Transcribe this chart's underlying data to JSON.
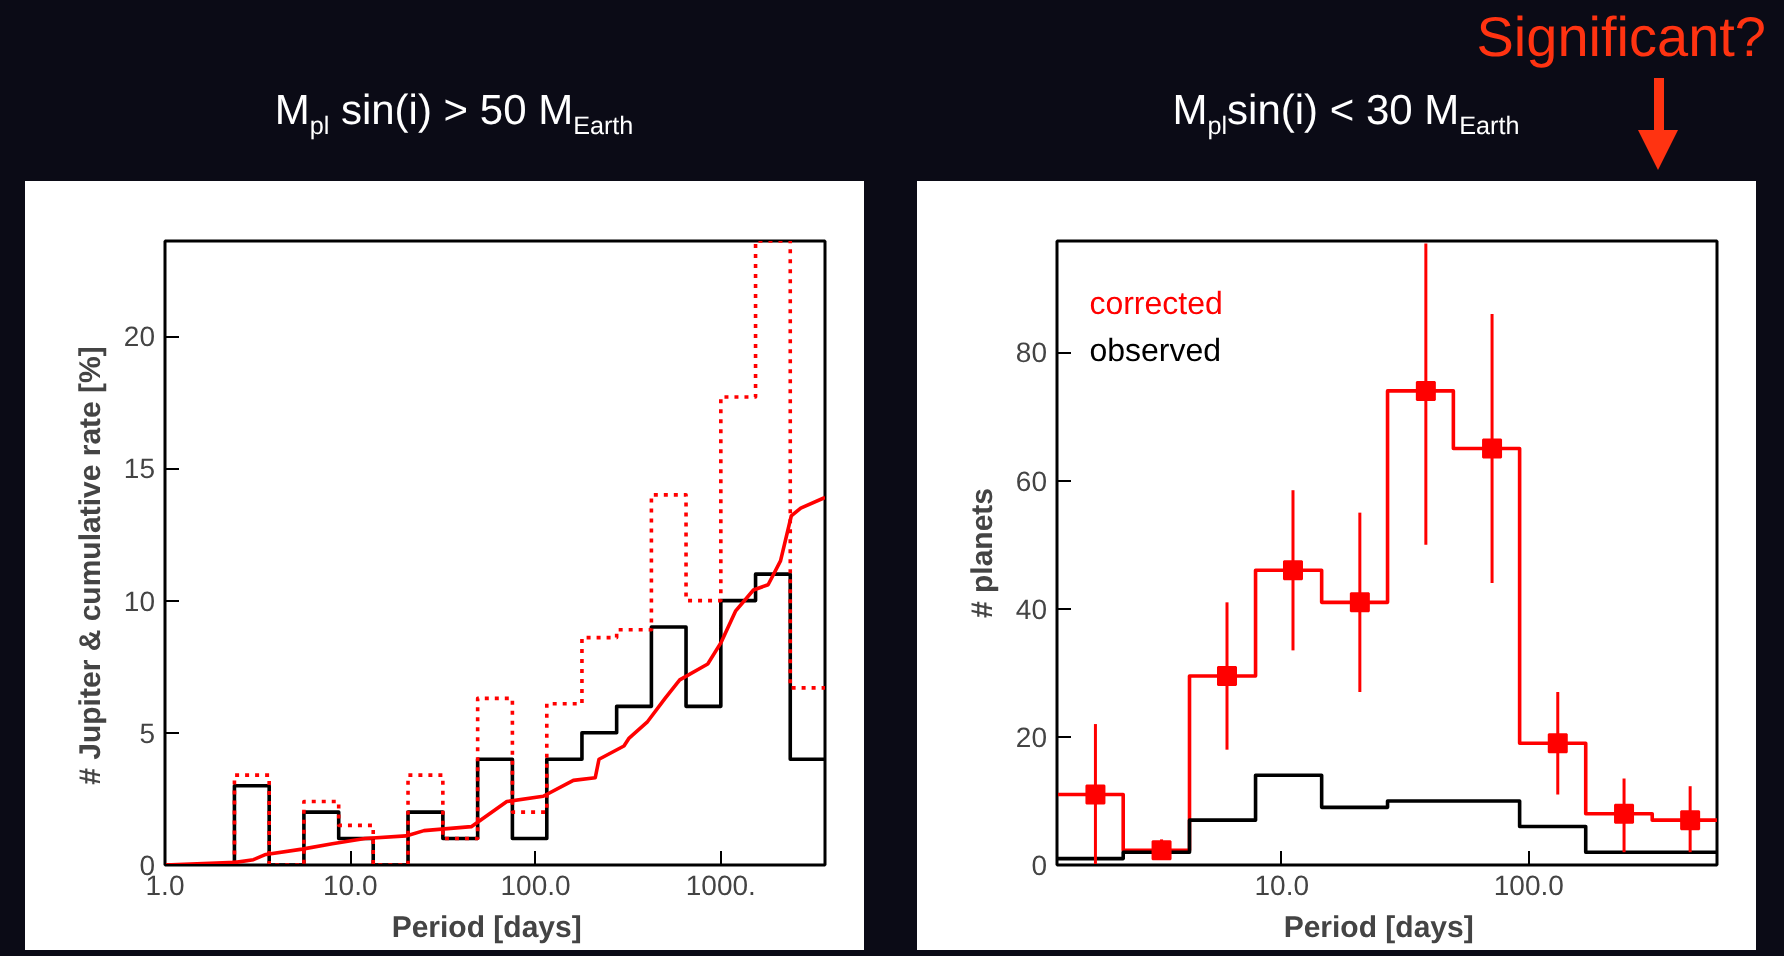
{
  "chart_data": [
    {
      "type": "histogram",
      "title": "M$_{pl}$ sin(i) > 50 M$_{Earth}$",
      "xlabel": "Period   [days]",
      "ylabel": "# Jupiter  &  cumulative rate  [%]",
      "log": "x",
      "grid": false,
      "legend": false,
      "bins": [
        1.0,
        1.54,
        2.37,
        3.65,
        5.62,
        8.66,
        13.3,
        20.5,
        31.6,
        48.7,
        75.0,
        115,
        178,
        274,
        422,
        649,
        1000,
        1540,
        2370,
        3650
      ],
      "series": [
        {
          "color": "#000000",
          "line_style": "solid",
          "values": [
            0,
            0,
            3,
            0,
            2,
            1,
            0,
            2,
            1,
            4,
            1,
            4,
            5,
            6,
            9,
            6,
            10,
            11,
            4
          ]
        },
        {
          "color": "#ff0000",
          "line_style": "dotted",
          "values": [
            0,
            0,
            3.4,
            0,
            2.4,
            1.5,
            0,
            3.4,
            1.0,
            6.3,
            2.0,
            6.1,
            8.6,
            8.9,
            14.0,
            10.0,
            17.7,
            23.6,
            6.7
          ]
        },
        {
          "type": "line",
          "color": "#ff0000",
          "line_style": "solid",
          "x": [
            1.0,
            2.4,
            3.0,
            3.5,
            5.5,
            8,
            12,
            20,
            25,
            45,
            70,
            110,
            160,
            210,
            220,
            300,
            320,
            400,
            500,
            600,
            850,
            1000,
            1200,
            1500,
            1800,
            2100,
            2400,
            2700,
            3650
          ],
          "values": [
            0,
            0.1,
            0.2,
            0.4,
            0.6,
            0.8,
            1.0,
            1.1,
            1.3,
            1.45,
            2.4,
            2.6,
            3.2,
            3.3,
            4.0,
            4.5,
            4.8,
            5.4,
            6.3,
            7.0,
            7.6,
            8.4,
            9.6,
            10.4,
            10.6,
            11.5,
            13.2,
            13.5,
            13.9
          ]
        }
      ],
      "xlim": [
        1.0,
        3650
      ],
      "ylim": [
        0,
        23.6
      ],
      "xticks": [
        {
          "value": 1,
          "label": "1.0"
        },
        {
          "value": 10,
          "label": "10.0"
        },
        {
          "value": 100,
          "label": "100.0"
        },
        {
          "value": 1000,
          "label": "1000."
        }
      ],
      "yticks": [
        0,
        5,
        10,
        15,
        20
      ]
    },
    {
      "type": "histogram",
      "title": "M$_{pl}$sin(i) < 30 M$_{Earth}$",
      "xlabel": "Period   [days]",
      "ylabel": "# planets",
      "log": "x",
      "grid": false,
      "legend": "top left",
      "bins": [
        1.23,
        2.28,
        4.23,
        7.83,
        14.5,
        26.8,
        49.5,
        91.8,
        170,
        316,
        578
      ],
      "series": [
        {
          "name": "corrected",
          "color": "#ff0000",
          "values": [
            11,
            2.3,
            29.5,
            46,
            41,
            74,
            65,
            19,
            8,
            7
          ]
        },
        {
          "name": "observed",
          "color": "#000000",
          "values": [
            1,
            2,
            7,
            14,
            9,
            10,
            10,
            6,
            2,
            2
          ]
        },
        {
          "type": "scatter",
          "marker": "square",
          "color": "#ff0000",
          "x": [
            1.76,
            3.26,
            6.0,
            11.1,
            20.7,
            38.3,
            71.0,
            131,
            243,
            450
          ],
          "values": [
            11,
            2.3,
            29.5,
            46,
            41,
            74,
            65,
            19,
            8,
            7
          ],
          "errors": [
            [
              0,
              22
            ],
            [
              1,
              4
            ],
            [
              18,
              41
            ],
            [
              33.5,
              58.5
            ],
            [
              27,
              55
            ],
            [
              50,
              97
            ],
            [
              44,
              86
            ],
            [
              11,
              27
            ],
            [
              2,
              13.5
            ],
            [
              2,
              12.3
            ]
          ]
        }
      ],
      "annotations": [
        "Significant?"
      ],
      "xlim": [
        1.23,
        578
      ],
      "ylim": [
        0,
        97.4
      ],
      "xticks": [
        {
          "value": 10,
          "label": "10.0"
        },
        {
          "value": 100,
          "label": "100.0"
        }
      ],
      "yticks": [
        0,
        20,
        40,
        60,
        80
      ]
    }
  ]
}
